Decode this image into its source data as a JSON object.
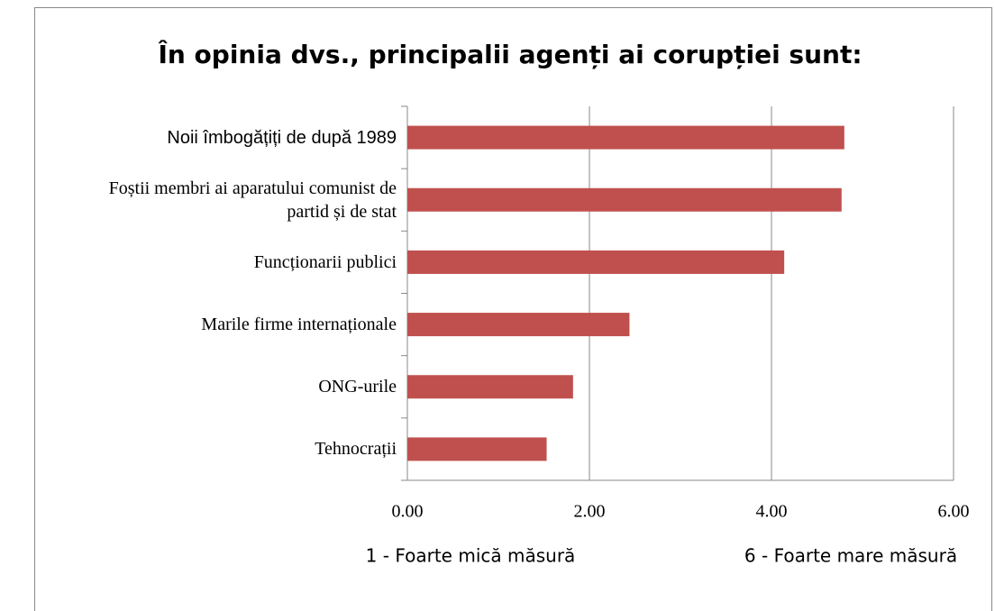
{
  "chart_data": {
    "type": "bar",
    "orientation": "horizontal",
    "title": "În opinia dvs., principalii agenți ai corupției sunt:",
    "categories": [
      "Noii îmbogățiți de după 1989",
      "Foștii membri ai aparatului comunist de partid și de stat",
      "Funcționarii publici",
      "Marile firme internaționale",
      "ONG-urile",
      "Tehnocrații"
    ],
    "values": [
      4.8,
      4.77,
      4.14,
      2.44,
      1.82,
      1.53
    ],
    "color": "#c0504d",
    "xlim": [
      0,
      6
    ],
    "xticks": [
      {
        "value": 0,
        "label": "0.00"
      },
      {
        "value": 2,
        "label": "2.00"
      },
      {
        "value": 4,
        "label": "4.00"
      },
      {
        "value": 6,
        "label": "6.00"
      }
    ],
    "grid": true,
    "annotations": [
      "1 - Foarte mică măsură",
      "6 - Foarte mare măsură"
    ]
  }
}
